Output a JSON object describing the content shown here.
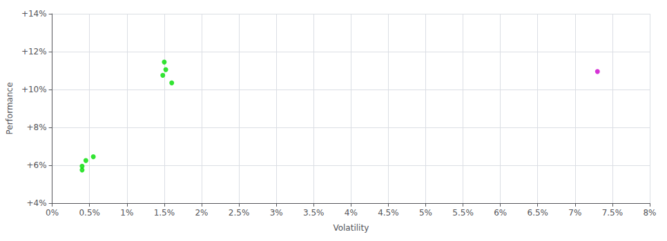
{
  "chart_data": {
    "type": "scatter",
    "xlabel": "Volatility",
    "ylabel": "Performance",
    "series": [
      {
        "color": "#00dd00",
        "values": [
          [
            0.0045,
            0.0625
          ],
          [
            0.004,
            0.0595
          ],
          [
            0.004,
            0.0575
          ],
          [
            0.0055,
            0.0645
          ],
          [
            0.015,
            0.1145
          ],
          [
            0.0152,
            0.1105
          ],
          [
            0.0148,
            0.1075
          ],
          [
            0.016,
            0.1035
          ]
        ]
      },
      {
        "color": "#cc00cc",
        "values": [
          [
            0.073,
            0.1095
          ]
        ]
      }
    ],
    "xlim": [
      0,
      0.08
    ],
    "ylim": [
      0.04,
      0.14
    ],
    "xticks": [
      {
        "value": 0.0,
        "label": "0%"
      },
      {
        "value": 0.005,
        "label": "0.5%"
      },
      {
        "value": 0.01,
        "label": "1%"
      },
      {
        "value": 0.015,
        "label": "1.5%"
      },
      {
        "value": 0.02,
        "label": "2%"
      },
      {
        "value": 0.025,
        "label": "2.5%"
      },
      {
        "value": 0.03,
        "label": "3%"
      },
      {
        "value": 0.035,
        "label": "3.5%"
      },
      {
        "value": 0.04,
        "label": "4%"
      },
      {
        "value": 0.045,
        "label": "4.5%"
      },
      {
        "value": 0.05,
        "label": "5%"
      },
      {
        "value": 0.055,
        "label": "5.5%"
      },
      {
        "value": 0.06,
        "label": "6%"
      },
      {
        "value": 0.065,
        "label": "6.5%"
      },
      {
        "value": 0.07,
        "label": "7%"
      },
      {
        "value": 0.075,
        "label": "7.5%"
      },
      {
        "value": 0.08,
        "label": "8%"
      }
    ],
    "yticks": [
      {
        "value": 0.04,
        "label": "+4%"
      },
      {
        "value": 0.06,
        "label": "+6%"
      },
      {
        "value": 0.08,
        "label": "+8%"
      },
      {
        "value": 0.1,
        "label": "+10%"
      },
      {
        "value": 0.12,
        "label": "+12%"
      },
      {
        "value": 0.14,
        "label": "+14%"
      }
    ],
    "grid": true
  }
}
